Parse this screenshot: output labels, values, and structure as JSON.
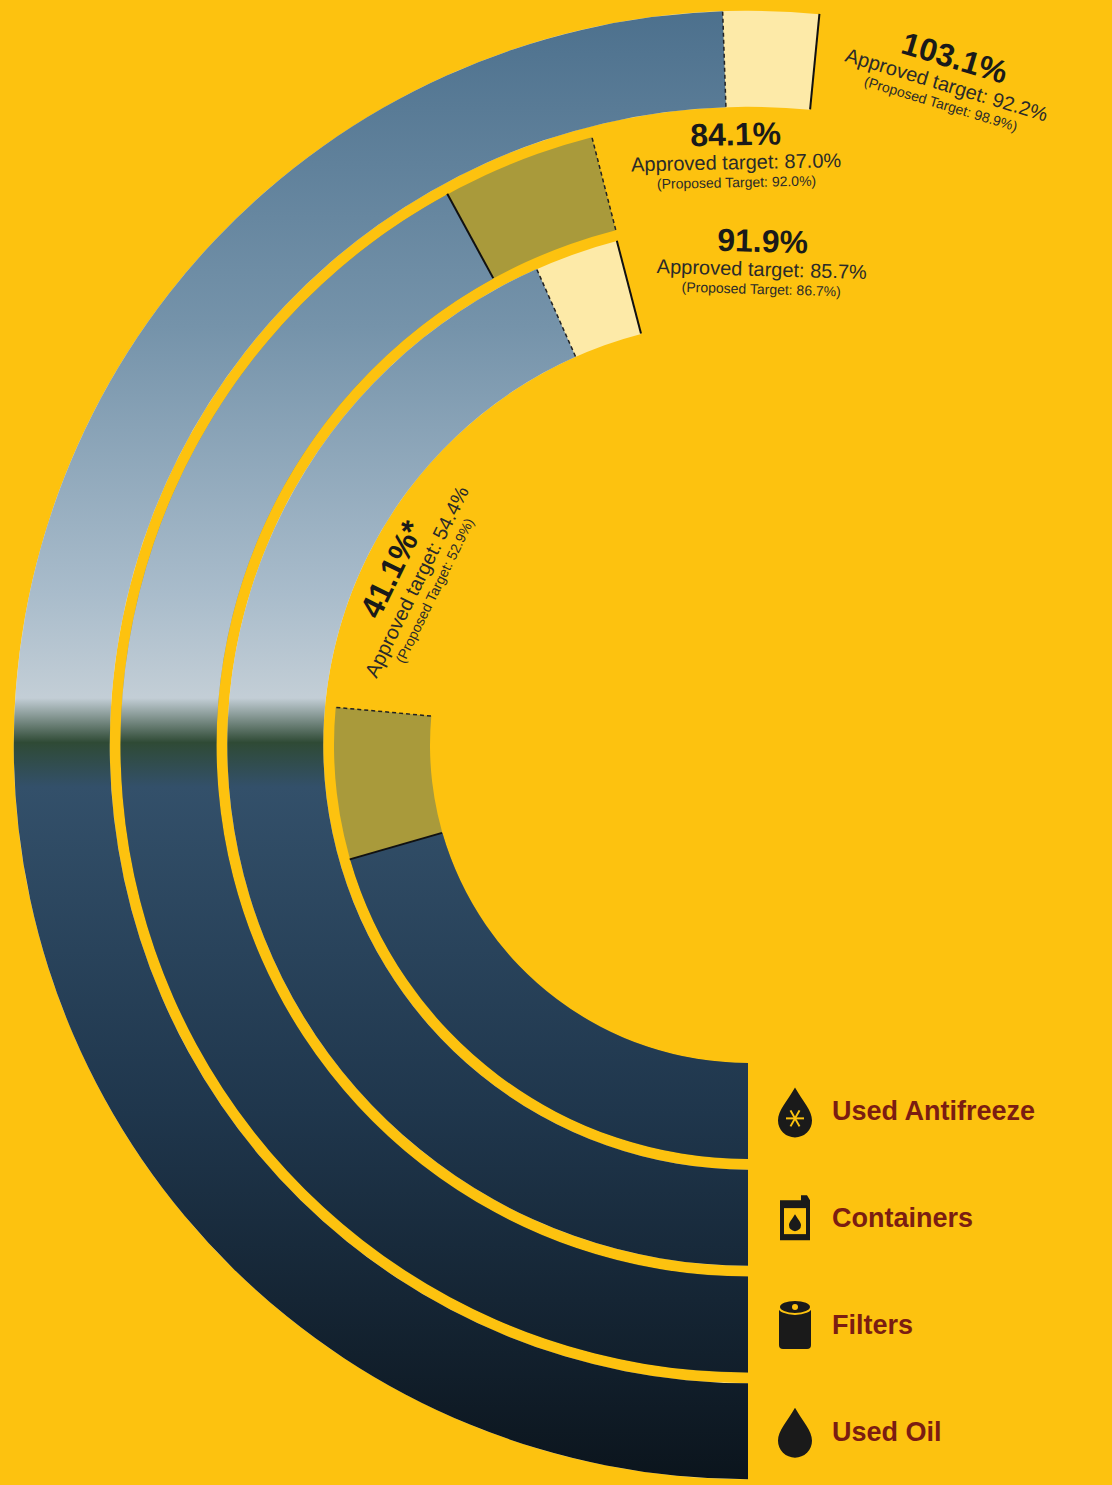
{
  "chart_data": {
    "type": "radial_bar",
    "categories": [
      "Used Antifreeze",
      "Containers",
      "Filters",
      "Used Oil"
    ],
    "values": [
      41.1,
      91.9,
      84.1,
      103.1
    ],
    "value_labels": [
      "41.1%*",
      "91.9%",
      "84.1%",
      "103.1%"
    ],
    "proposed_target": [
      52.9,
      86.7,
      92.0,
      98.9
    ],
    "annotations": [
      [
        "Approved target: 54.4%",
        "(Proposed Target: 52.9%)"
      ],
      [
        "Approved target: 85.7%",
        "(Proposed Target: 86.7%)"
      ],
      [
        "Approved target: 87.0%",
        "(Proposed Target: 92.0%)"
      ],
      [
        "Approved target: 92.2%",
        "(Proposed Target: 98.9%)"
      ]
    ],
    "xlim": [
      0,
      105
    ],
    "tick_labels": false,
    "data_labels": true
  }
}
